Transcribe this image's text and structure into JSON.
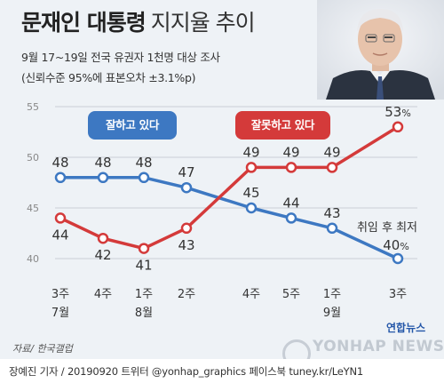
{
  "header": {
    "title_bold": "문재인 대통령",
    "title_light": "지지율 추이",
    "subtitle1": "9월 17~19일 전국 유권자 1천명 대상 조사",
    "subtitle2": "(신뢰수준 95%에 표본오차 ±3.1%p)"
  },
  "chart_data": {
    "type": "line",
    "ylim": [
      38,
      56
    ],
    "yticks": [
      40,
      45,
      50,
      55
    ],
    "grid": true,
    "categories": [
      "3주\n7월",
      "4주",
      "1주\n8월",
      "2주",
      "4주",
      "5주",
      "1주\n9월",
      "3주"
    ],
    "series": [
      {
        "name": "잘하고 있다",
        "color": "#3d78c2",
        "values": [
          48,
          48,
          48,
          47,
          45,
          44,
          43,
          40
        ]
      },
      {
        "name": "잘못하고 있다",
        "color": "#d43a3a",
        "values": [
          44,
          42,
          41,
          43,
          49,
          49,
          49,
          53
        ]
      }
    ],
    "last_label_suffix": "%",
    "annotation": "취임 후 최저"
  },
  "footer": {
    "source": "자료/ 한국갤럽",
    "credit": "장예진 기자 / 20190920 트위터 @yonhap_graphics 페이스북 tuney.kr/LeYN1",
    "logo": "연합뉴스",
    "watermark": "YONHAP NEWS"
  }
}
